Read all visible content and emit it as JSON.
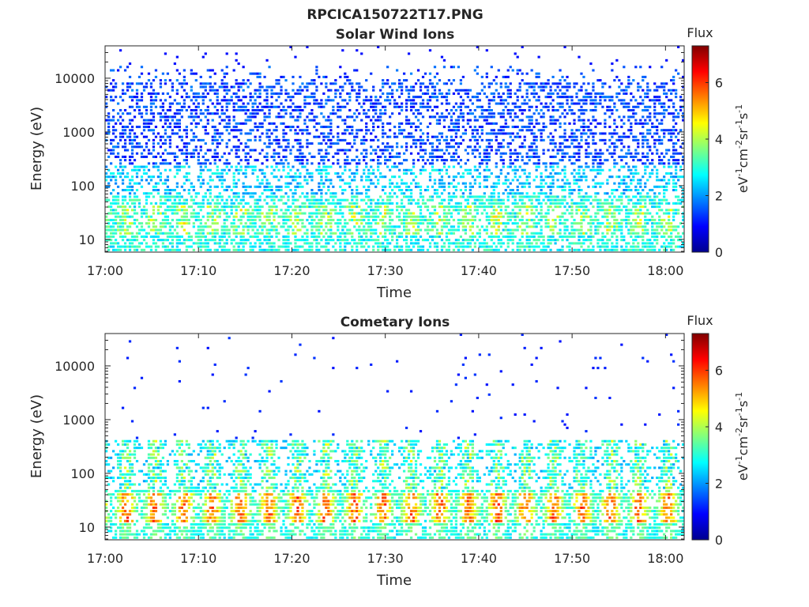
{
  "figure_title": "RPCICA150722T17.PNG",
  "chart_data": [
    {
      "type": "heatmap",
      "title": "Solar Wind Ions",
      "xlabel": "Time",
      "ylabel": "Energy (eV)",
      "x_range": [
        "17:00",
        "18:02"
      ],
      "x_ticks": [
        "17:00",
        "17:10",
        "17:20",
        "17:30",
        "17:40",
        "17:50",
        "18:00"
      ],
      "y_scale": "log",
      "y_range_ev": [
        5.8,
        40000
      ],
      "y_ticks": [
        "10",
        "100",
        "1000",
        "10000"
      ],
      "colorbar": {
        "title": "Flux",
        "label": "eV-1cm-2sr-1s-1",
        "range": [
          0,
          7.3
        ],
        "ticks": [
          "0",
          "2",
          "4",
          "6"
        ]
      },
      "description": "Sparse, mostly low-flux (blue, 1–2) counts across 100 eV–30 keV; cyan-green (2.5–4) low-energy band below ~60 eV with periodic yellow-orange (~4.5–5) bursts near 15–40 eV."
    },
    {
      "type": "heatmap",
      "title": "Cometary Ions",
      "xlabel": "Time",
      "ylabel": "Energy (eV)",
      "x_range": [
        "17:00",
        "18:02"
      ],
      "x_ticks": [
        "17:00",
        "17:10",
        "17:20",
        "17:30",
        "17:40",
        "17:50",
        "18:00"
      ],
      "y_scale": "log",
      "y_range_ev": [
        5.8,
        40000
      ],
      "y_ticks": [
        "10",
        "100",
        "1000",
        "10000"
      ],
      "colorbar": {
        "title": "Flux",
        "label": "eV-1cm-2sr-1s-1",
        "range": [
          0,
          7.3
        ],
        "ticks": [
          "0",
          "2",
          "4",
          "6"
        ]
      },
      "description": "Intense cometary ion signal below ~300 eV recurring roughly every 3 minutes, peaking orange-red (5.5–6.5) near 12–35 eV; scattered isolated blue counts up to ~20 keV."
    }
  ]
}
